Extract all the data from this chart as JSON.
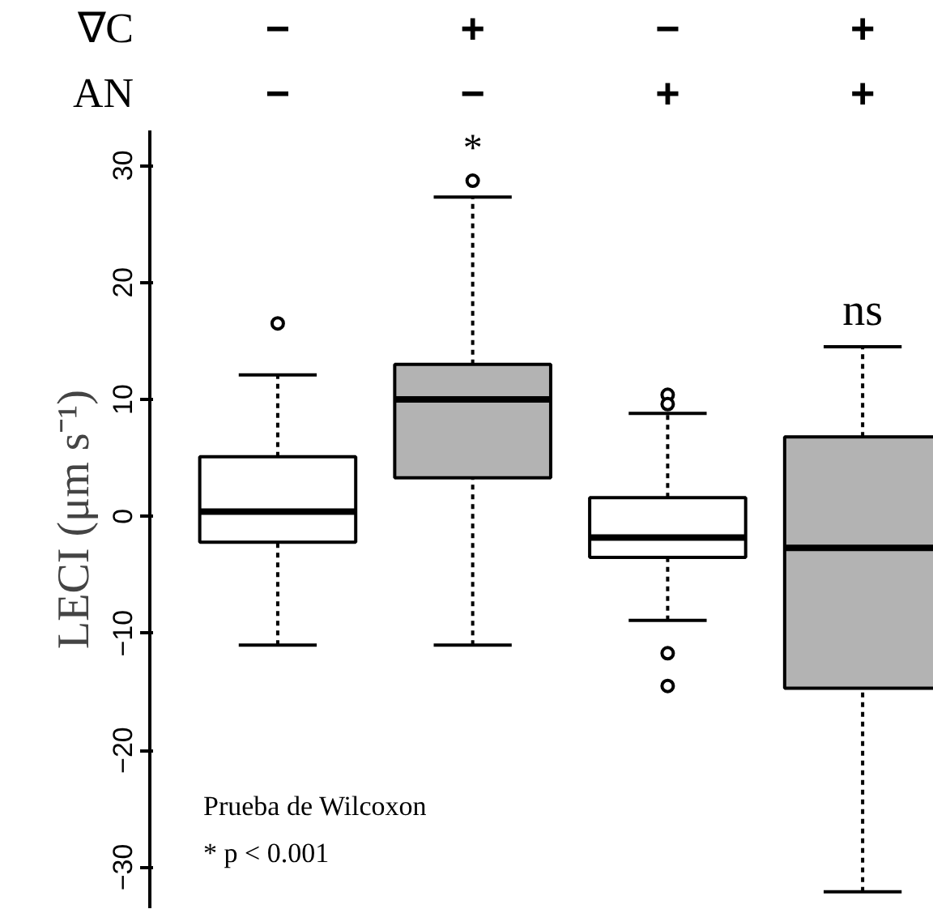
{
  "chart_data": {
    "type": "box",
    "ylabel": "LECI (μm s⁻¹)",
    "categories": [
      "−\n−",
      "+\n−",
      "−\n+",
      "+\n+"
    ],
    "colors": [
      "#ffffff",
      "#b3b3b3",
      "#ffffff",
      "#b3b3b3"
    ],
    "boxes": [
      {
        "low": -11.0,
        "q1": -2.2,
        "median": 0.4,
        "q3": 5.1,
        "high": 12.1,
        "outliers": [
          16.5
        ]
      },
      {
        "low": -11.0,
        "q1": 3.3,
        "median": 10.0,
        "q3": 13.0,
        "high": 27.3,
        "outliers": [
          28.7
        ]
      },
      {
        "low": -8.9,
        "q1": -3.5,
        "median": -1.8,
        "q3": 1.6,
        "high": 8.8,
        "outliers": [
          10.4,
          9.6,
          -11.7,
          -14.5
        ]
      },
      {
        "low": -32.1,
        "q1": -14.7,
        "median": -2.7,
        "q3": 6.8,
        "high": 14.5
      }
    ],
    "ylim": [
      -33.5,
      33
    ],
    "yticks": [
      -30,
      -20,
      -10,
      0,
      10,
      20,
      30
    ],
    "grid": false,
    "annotations": [
      "∇C",
      "AN",
      "*",
      "ns",
      "Prueba de Wilcoxon",
      "* p < 0.001"
    ]
  }
}
